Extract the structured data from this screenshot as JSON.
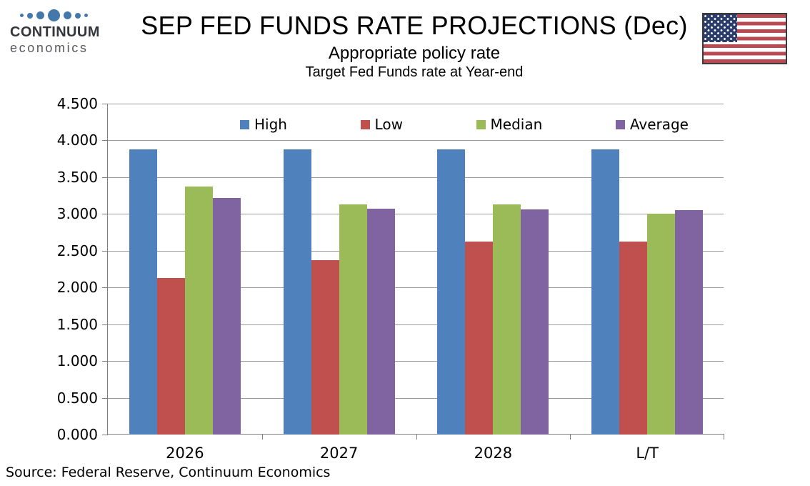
{
  "logo": {
    "name": "CONTINUUM",
    "subname": "economics",
    "dot_color": "#4478ab",
    "dot_sizes": [
      5,
      8,
      11,
      17,
      11,
      8,
      5
    ]
  },
  "flag": {
    "icon": "us-flag-icon",
    "stripe_red": "#b94a52",
    "canton_blue": "#2c3d6b",
    "border": "#3b3b3b"
  },
  "source": "Source: Federal Reserve, Continuum Economics",
  "chart_data": {
    "type": "bar",
    "title": "SEP FED FUNDS RATE PROJECTIONS (Dec)",
    "subtitle": "Appropriate policy rate",
    "subtitle2": "Target Fed Funds rate at Year-end",
    "categories": [
      "2026",
      "2027",
      "2028",
      "L/T"
    ],
    "series": [
      {
        "name": "High",
        "color": "#4F81BD",
        "values": [
          3.875,
          3.875,
          3.875,
          3.875
        ]
      },
      {
        "name": "Low",
        "color": "#C0504D",
        "values": [
          2.125,
          2.375,
          2.625,
          2.625
        ]
      },
      {
        "name": "Median",
        "color": "#9BBB59",
        "values": [
          3.375,
          3.125,
          3.125,
          3.0
        ]
      },
      {
        "name": "Average",
        "color": "#8064A2",
        "values": [
          3.22,
          3.07,
          3.06,
          3.05
        ]
      }
    ],
    "xlabel": "",
    "ylabel": "",
    "ylim": [
      0,
      4.5
    ],
    "ytick_step": 0.5,
    "ytick_decimals": 3,
    "grid": true,
    "legend_position": "top-inside"
  }
}
